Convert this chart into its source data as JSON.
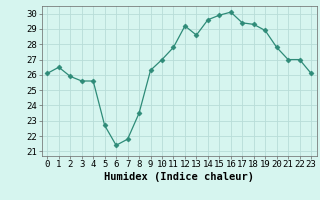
{
  "x": [
    0,
    1,
    2,
    3,
    4,
    5,
    6,
    7,
    8,
    9,
    10,
    11,
    12,
    13,
    14,
    15,
    16,
    17,
    18,
    19,
    20,
    21,
    22,
    23
  ],
  "y": [
    26.1,
    26.5,
    25.9,
    25.6,
    25.6,
    22.7,
    21.4,
    21.8,
    23.5,
    26.3,
    27.0,
    27.8,
    29.2,
    28.6,
    29.6,
    29.9,
    30.1,
    29.4,
    29.3,
    28.9,
    27.8,
    27.0,
    27.0,
    26.1
  ],
  "line_color": "#2e8b78",
  "marker": "D",
  "marker_size": 2.5,
  "bg_color": "#d6f5ef",
  "grid_color": "#b8ddd8",
  "xlabel": "Humidex (Indice chaleur)",
  "ylabel_ticks": [
    21,
    22,
    23,
    24,
    25,
    26,
    27,
    28,
    29,
    30
  ],
  "ylim": [
    20.7,
    30.5
  ],
  "xlim": [
    -0.5,
    23.5
  ],
  "xticks": [
    0,
    1,
    2,
    3,
    4,
    5,
    6,
    7,
    8,
    9,
    10,
    11,
    12,
    13,
    14,
    15,
    16,
    17,
    18,
    19,
    20,
    21,
    22,
    23
  ],
  "tick_fontsize": 6.5,
  "xlabel_fontsize": 7.5
}
